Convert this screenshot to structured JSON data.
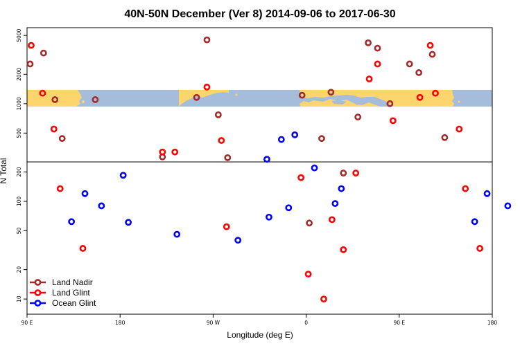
{
  "chart_data": {
    "type": "scatter",
    "title": "40N-50N December (Ver 8)   2014-09-06 to 2017-06-30",
    "xlabel": "Longitude (deg E)",
    "ylabel": "N Total",
    "x_ticks": [
      {
        "value": 90,
        "label": "90 E"
      },
      {
        "value": 180,
        "label": "180"
      },
      {
        "value": 270,
        "label": "90 W"
      },
      {
        "value": 360,
        "label": "0"
      },
      {
        "value": 450,
        "label": "90 E"
      },
      {
        "value": 540,
        "label": "180"
      }
    ],
    "xlim": [
      90,
      540
    ],
    "ylim": [
      7,
      6000
    ],
    "y_scale": "log",
    "y_ticks": [
      {
        "value": 10,
        "label": "10"
      },
      {
        "value": 20,
        "label": "20"
      },
      {
        "value": 50,
        "label": "50"
      },
      {
        "value": 100,
        "label": "100"
      },
      {
        "value": 200,
        "label": "200"
      },
      {
        "value": 500,
        "label": "500"
      },
      {
        "value": 1000,
        "label": "1000"
      },
      {
        "value": 2000,
        "label": "2000"
      },
      {
        "value": 5000,
        "label": "5000"
      }
    ],
    "map_inset": {
      "y_low": 920,
      "y_high": 1380,
      "land_color": "#fdd56c",
      "ocean_color": "#a6bcdb"
    },
    "legend_position": "bottom-left",
    "series": [
      {
        "name": "Land Nadir",
        "color": "#a52a2a",
        "points": [
          [
            93,
            2550
          ],
          [
            106,
            3300
          ],
          [
            117,
            1100
          ],
          [
            124,
            440
          ],
          [
            156,
            1100
          ],
          [
            221,
            285
          ],
          [
            254,
            1160
          ],
          [
            264,
            4500
          ],
          [
            275,
            770
          ],
          [
            284,
            280
          ],
          [
            356,
            1220
          ],
          [
            363,
            60
          ],
          [
            375,
            440
          ],
          [
            384,
            1310
          ],
          [
            396,
            195
          ],
          [
            410,
            730
          ],
          [
            420,
            4200
          ],
          [
            429,
            3700
          ],
          [
            441,
            1000
          ],
          [
            460,
            2550
          ],
          [
            469,
            2080
          ],
          [
            482,
            3200
          ],
          [
            494,
            450
          ]
        ]
      },
      {
        "name": "Land Glint",
        "color": "#ff0000",
        "points": [
          [
            94,
            3950
          ],
          [
            105,
            1280
          ],
          [
            116,
            550
          ],
          [
            122,
            135
          ],
          [
            144,
            33
          ],
          [
            221,
            320
          ],
          [
            233,
            320
          ],
          [
            264,
            1480
          ],
          [
            278,
            420
          ],
          [
            283,
            55
          ],
          [
            355,
            175
          ],
          [
            362,
            18
          ],
          [
            377,
            10
          ],
          [
            385,
            65
          ],
          [
            396,
            32
          ],
          [
            408,
            195
          ],
          [
            421,
            1790
          ],
          [
            429,
            2550
          ],
          [
            444,
            670
          ],
          [
            470,
            1160
          ],
          [
            480,
            3950
          ],
          [
            485,
            1280
          ],
          [
            508,
            550
          ],
          [
            514,
            135
          ],
          [
            528,
            33
          ]
        ]
      },
      {
        "name": "Ocean Glint",
        "color": "#0000ff",
        "points": [
          [
            133,
            62
          ],
          [
            146,
            120
          ],
          [
            162,
            90
          ],
          [
            183,
            185
          ],
          [
            188,
            61
          ],
          [
            235,
            46
          ],
          [
            294,
            40
          ],
          [
            322,
            270
          ],
          [
            324,
            69
          ],
          [
            336,
            430
          ],
          [
            343,
            86
          ],
          [
            349,
            480
          ],
          [
            368,
            220
          ],
          [
            388,
            95
          ],
          [
            394,
            135
          ],
          [
            523,
            62
          ],
          [
            535,
            120
          ],
          [
            555,
            90
          ]
        ]
      }
    ]
  }
}
